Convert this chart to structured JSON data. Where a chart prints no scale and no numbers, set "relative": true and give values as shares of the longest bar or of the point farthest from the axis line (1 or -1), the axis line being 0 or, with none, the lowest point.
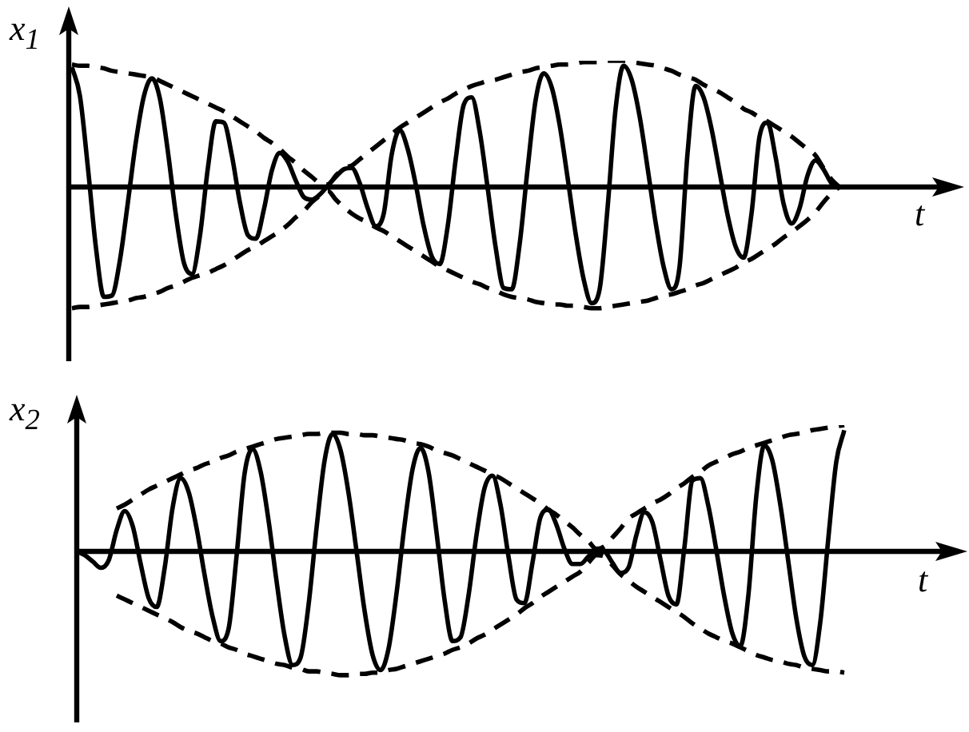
{
  "chart_data": [
    {
      "type": "line",
      "xlabel": "t",
      "ylabel": "x$_{1}$",
      "relative": true,
      "marker": "none",
      "tick_labels": false,
      "categories": [
        null,
        null,
        null,
        null,
        null,
        null,
        null,
        null,
        null,
        null,
        null,
        null,
        null,
        null,
        null,
        null,
        null,
        null,
        null,
        null,
        null,
        null,
        null,
        null,
        null,
        null,
        null,
        null,
        null,
        null,
        null,
        null,
        null,
        null,
        null,
        null,
        null,
        null,
        null,
        null,
        null,
        null,
        null,
        null,
        null,
        null,
        null,
        null,
        null,
        null,
        null,
        null,
        null,
        null,
        null,
        null,
        null,
        null,
        null,
        null,
        null,
        null,
        null,
        null,
        null,
        null,
        null,
        null,
        null,
        null,
        null,
        null,
        null,
        null,
        null,
        null,
        null,
        null,
        null,
        null,
        null,
        null,
        null,
        null,
        null,
        null,
        null,
        null,
        null,
        null,
        null,
        null,
        null,
        null,
        null,
        null,
        null
      ],
      "series": [
        {
          "color": "#000000",
          "line_style": "solid",
          "values": [
            0.95,
            0.72,
            0.15,
            -0.48,
            -0.87,
            -0.86,
            -0.58,
            -0.12,
            0.36,
            0.72,
            0.86,
            0.7,
            0.28,
            -0.22,
            -0.6,
            -0.69,
            -0.39,
            0.15,
            0.52,
            0.51,
            0.25,
            -0.12,
            -0.38,
            -0.41,
            -0.18,
            0.13,
            0.27,
            0.2,
            0.05,
            -0.08,
            -0.1,
            -0.06,
            0.01,
            0.08,
            0.14,
            0.15,
            0.03,
            -0.17,
            -0.31,
            -0.21,
            0.26,
            0.45,
            0.3,
            0.02,
            -0.31,
            -0.55,
            -0.61,
            -0.31,
            0.22,
            0.65,
            0.71,
            0.44,
            -0.01,
            -0.48,
            -0.8,
            -0.81,
            -0.45,
            0.15,
            0.69,
            0.9,
            0.79,
            0.49,
            0.07,
            -0.37,
            -0.73,
            -0.92,
            -0.81,
            -0.16,
            0.62,
            0.96,
            0.85,
            0.56,
            0.15,
            -0.28,
            -0.63,
            -0.81,
            -0.63,
            0.27,
            0.8,
            0.71,
            0.46,
            0.12,
            -0.22,
            -0.47,
            -0.56,
            -0.21,
            0.4,
            0.51,
            0.24,
            -0.13,
            -0.29,
            -0.17,
            0.09,
            0.21,
            0.14,
            0.03,
            0.0
          ]
        },
        {
          "color": "#000000",
          "line_style": "dashed",
          "values": [
            0.97,
            0.96,
            0.96,
            0.95,
            0.94,
            0.92,
            0.91,
            0.9,
            0.89,
            0.88,
            0.87,
            0.84,
            0.81,
            0.78,
            0.75,
            0.72,
            0.69,
            0.66,
            0.63,
            0.6,
            0.56,
            0.52,
            0.48,
            0.44,
            0.39,
            0.35,
            0.3,
            0.24,
            0.19,
            0.13,
            0.08,
            0.03,
            0.02,
            0.09,
            0.15,
            0.17,
            0.22,
            0.27,
            0.32,
            0.37,
            0.42,
            0.47,
            0.51,
            0.55,
            0.59,
            0.63,
            0.67,
            0.7,
            0.74,
            0.77,
            0.8,
            0.82,
            0.84,
            0.85,
            0.87,
            0.89,
            0.91,
            0.92,
            0.94,
            0.95,
            0.96,
            0.97,
            0.97,
            0.98,
            0.99,
            0.99,
            0.99,
            1.0,
            1.0,
            1.0,
            0.99,
            0.98,
            0.97,
            0.96,
            0.94,
            0.92,
            0.89,
            0.87,
            0.85,
            0.81,
            0.78,
            0.75,
            0.71,
            0.67,
            0.62,
            0.59,
            0.55,
            0.52,
            0.48,
            0.44,
            0.4,
            0.35,
            0.3,
            0.25,
            0.15,
            0.06,
            0.0
          ]
        },
        {
          "color": "#000000",
          "line_style": "dashed",
          "values": [
            -0.96,
            -0.95,
            -0.95,
            -0.94,
            -0.93,
            -0.92,
            -0.91,
            -0.9,
            -0.88,
            -0.87,
            -0.85,
            -0.83,
            -0.8,
            -0.78,
            -0.75,
            -0.72,
            -0.7,
            -0.68,
            -0.65,
            -0.62,
            -0.58,
            -0.54,
            -0.5,
            -0.47,
            -0.43,
            -0.39,
            -0.35,
            -0.3,
            -0.24,
            -0.19,
            -0.12,
            -0.07,
            -0.03,
            -0.1,
            -0.16,
            -0.21,
            -0.25,
            -0.28,
            -0.32,
            -0.35,
            -0.39,
            -0.43,
            -0.47,
            -0.51,
            -0.55,
            -0.59,
            -0.63,
            -0.66,
            -0.69,
            -0.72,
            -0.75,
            -0.77,
            -0.8,
            -0.82,
            -0.85,
            -0.87,
            -0.88,
            -0.89,
            -0.91,
            -0.92,
            -0.93,
            -0.93,
            -0.94,
            -0.94,
            -0.95,
            -0.96,
            -0.96,
            -0.95,
            -0.94,
            -0.93,
            -0.92,
            -0.91,
            -0.9,
            -0.88,
            -0.86,
            -0.85,
            -0.83,
            -0.81,
            -0.78,
            -0.76,
            -0.73,
            -0.7,
            -0.67,
            -0.64,
            -0.6,
            -0.57,
            -0.53,
            -0.49,
            -0.45,
            -0.4,
            -0.36,
            -0.31,
            -0.26,
            -0.2,
            -0.12,
            -0.05,
            0.0
          ]
        }
      ]
    },
    {
      "type": "line",
      "xlabel": "t",
      "ylabel": "x$_{2}$",
      "relative": true,
      "marker": "none",
      "tick_labels": false,
      "categories": [
        null,
        null,
        null,
        null,
        null,
        null,
        null,
        null,
        null,
        null,
        null,
        null,
        null,
        null,
        null,
        null,
        null,
        null,
        null,
        null,
        null,
        null,
        null,
        null,
        null,
        null,
        null,
        null,
        null,
        null,
        null,
        null,
        null,
        null,
        null,
        null,
        null,
        null,
        null,
        null,
        null,
        null,
        null,
        null,
        null,
        null,
        null,
        null,
        null,
        null,
        null,
        null,
        null,
        null,
        null,
        null,
        null,
        null,
        null,
        null,
        null,
        null,
        null,
        null,
        null,
        null,
        null,
        null,
        null,
        null,
        null,
        null,
        null,
        null,
        null,
        null,
        null,
        null,
        null,
        null,
        null,
        null,
        null,
        null,
        null,
        null,
        null,
        null,
        null,
        null,
        null,
        null,
        null,
        null,
        null,
        null,
        null
      ],
      "series": [
        {
          "color": "#000000",
          "line_style": "solid",
          "values": [
            0.0,
            -0.03,
            -0.08,
            -0.13,
            -0.07,
            0.17,
            0.32,
            0.2,
            -0.1,
            -0.37,
            -0.44,
            -0.13,
            0.35,
            0.58,
            0.47,
            0.18,
            -0.19,
            -0.52,
            -0.71,
            -0.61,
            -0.03,
            0.62,
            0.81,
            0.63,
            0.24,
            -0.24,
            -0.67,
            -0.9,
            -0.84,
            -0.42,
            0.19,
            0.72,
            0.93,
            0.8,
            0.46,
            0.0,
            -0.47,
            -0.82,
            -0.94,
            -0.77,
            -0.33,
            0.21,
            0.65,
            0.82,
            0.63,
            0.15,
            -0.38,
            -0.71,
            -0.68,
            -0.35,
            0.13,
            0.5,
            0.6,
            0.37,
            -0.04,
            -0.38,
            -0.41,
            -0.09,
            0.27,
            0.33,
            0.21,
            0.02,
            -0.1,
            -0.1,
            -0.04,
            0.01,
            0.0,
            -0.09,
            -0.17,
            -0.13,
            0.13,
            0.31,
            0.23,
            -0.06,
            -0.35,
            -0.42,
            0.03,
            0.56,
            0.58,
            0.36,
            0.01,
            -0.36,
            -0.65,
            -0.75,
            -0.35,
            0.44,
            0.84,
            0.72,
            0.37,
            -0.08,
            -0.53,
            -0.83,
            -0.9,
            -0.56,
            0.1,
            0.71,
            0.96
          ]
        },
        {
          "color": "#000000",
          "line_style": "dashed",
          "values": [
            null,
            null,
            null,
            null,
            null,
            0.34,
            0.37,
            0.41,
            0.45,
            0.49,
            0.52,
            0.55,
            0.58,
            0.61,
            0.64,
            0.66,
            0.69,
            0.71,
            0.74,
            0.76,
            0.79,
            0.81,
            0.83,
            0.85,
            0.87,
            0.89,
            0.9,
            0.91,
            0.92,
            0.93,
            0.93,
            0.94,
            0.94,
            0.94,
            0.93,
            0.93,
            0.92,
            0.92,
            0.91,
            0.9,
            0.89,
            0.88,
            0.86,
            0.85,
            0.83,
            0.8,
            0.78,
            0.76,
            0.73,
            0.7,
            0.67,
            0.64,
            0.61,
            0.58,
            0.54,
            0.5,
            0.46,
            0.42,
            0.38,
            0.33,
            0.29,
            0.24,
            0.19,
            0.13,
            0.08,
            0.02,
            0.04,
            0.11,
            0.18,
            0.26,
            0.3,
            0.34,
            0.38,
            0.41,
            0.45,
            0.5,
            0.54,
            0.59,
            0.63,
            0.68,
            0.71,
            0.74,
            0.77,
            0.79,
            0.82,
            0.84,
            0.86,
            0.88,
            0.9,
            0.92,
            0.93,
            0.94,
            0.96,
            0.97,
            0.98,
            0.99,
            1.0
          ]
        },
        {
          "color": "#000000",
          "line_style": "dashed",
          "values": [
            null,
            null,
            null,
            null,
            null,
            -0.35,
            -0.38,
            -0.41,
            -0.44,
            -0.47,
            -0.5,
            -0.53,
            -0.56,
            -0.6,
            -0.63,
            -0.65,
            -0.68,
            -0.71,
            -0.73,
            -0.76,
            -0.78,
            -0.81,
            -0.83,
            -0.85,
            -0.87,
            -0.89,
            -0.9,
            -0.92,
            -0.93,
            -0.95,
            -0.95,
            -0.96,
            -0.97,
            -0.98,
            -0.98,
            -0.97,
            -0.97,
            -0.96,
            -0.96,
            -0.94,
            -0.93,
            -0.91,
            -0.89,
            -0.87,
            -0.85,
            -0.83,
            -0.81,
            -0.78,
            -0.76,
            -0.73,
            -0.69,
            -0.66,
            -0.62,
            -0.58,
            -0.54,
            -0.5,
            -0.45,
            -0.41,
            -0.36,
            -0.32,
            -0.28,
            -0.24,
            -0.2,
            -0.16,
            -0.09,
            -0.03,
            -0.04,
            -0.11,
            -0.18,
            -0.23,
            -0.28,
            -0.32,
            -0.36,
            -0.4,
            -0.44,
            -0.48,
            -0.52,
            -0.57,
            -0.61,
            -0.65,
            -0.68,
            -0.71,
            -0.73,
            -0.76,
            -0.79,
            -0.82,
            -0.84,
            -0.86,
            -0.87,
            -0.89,
            -0.9,
            -0.92,
            -0.93,
            -0.94,
            -0.95,
            -0.95,
            -0.96
          ]
        }
      ]
    }
  ]
}
